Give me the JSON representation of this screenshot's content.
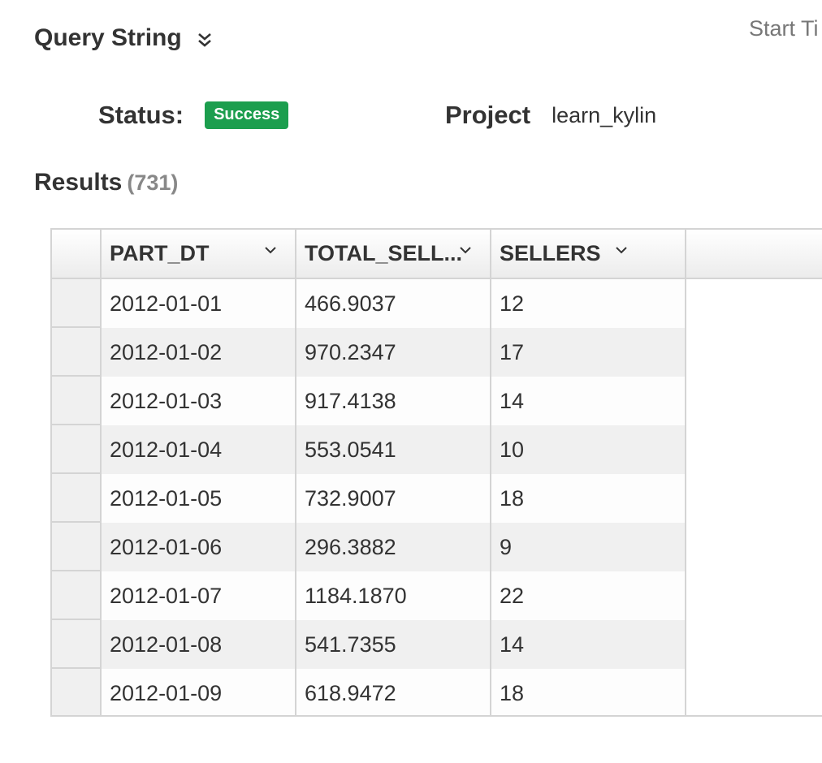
{
  "query_string": {
    "title": "Query String",
    "toggle_icon": "double-chevron-down-icon"
  },
  "start_time": {
    "label": "Start Ti"
  },
  "status": {
    "label": "Status:",
    "value": "Success",
    "color": "#1c9e4e"
  },
  "project": {
    "label": "Project",
    "value": "learn_kylin"
  },
  "results": {
    "title": "Results",
    "count": "(731)"
  },
  "grid": {
    "columns": [
      {
        "label": "PART_DT",
        "icon": "chevron-down-icon"
      },
      {
        "label": "TOTAL_SELL...",
        "icon": "chevron-down-icon"
      },
      {
        "label": "SELLERS",
        "icon": "chevron-down-icon"
      }
    ],
    "rows": [
      [
        "2012-01-01",
        "466.9037",
        "12"
      ],
      [
        "2012-01-02",
        "970.2347",
        "17"
      ],
      [
        "2012-01-03",
        "917.4138",
        "14"
      ],
      [
        "2012-01-04",
        "553.0541",
        "10"
      ],
      [
        "2012-01-05",
        "732.9007",
        "18"
      ],
      [
        "2012-01-06",
        "296.3882",
        "9"
      ],
      [
        "2012-01-07",
        "1184.1870",
        "22"
      ],
      [
        "2012-01-08",
        "541.7355",
        "14"
      ],
      [
        "2012-01-09",
        "618.9472",
        "18"
      ]
    ]
  }
}
